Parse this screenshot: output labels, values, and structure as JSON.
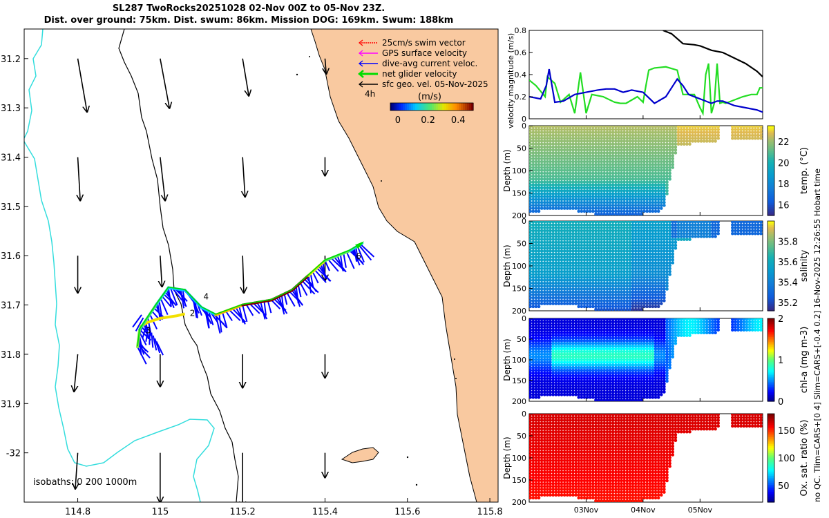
{
  "header": {
    "title_line1": "SL287 TwoRocks20251028 02-Nov 00Z to 05-Nov 23Z.",
    "title_line2": "Dist. over ground: 75km. Dist. swum: 86km. Mission DOG: 169km. Swum: 188km"
  },
  "timestamp": "no QC. Tlim=CARS+[0 4] Slim=CARS+[-0.4 0.2] 16-Nov-2025 12:26:55 Hobart time",
  "colors": {
    "land": "#f9c9a0",
    "coastline": "#000000",
    "isobath_200": "#000000",
    "isobath_1000": "#33dddd",
    "swim_vector": "#ff0000",
    "gps_surface": "#ff00ff",
    "dive_avg_current": "#0000ff",
    "net_glider": "#00dd00",
    "sfc_geo": "#000000"
  },
  "chart_data": [
    {
      "type": "map",
      "name": "glider-track-map",
      "xlim": [
        114.67,
        115.82
      ],
      "ylim": [
        -31.14,
        -32.1
      ],
      "x_ticks": [
        114.8,
        115,
        115.2,
        115.4,
        115.6,
        115.8
      ],
      "x_tick_labels": [
        "114.8",
        "115",
        "115.2",
        "115.4",
        "115.6",
        "115.8"
      ],
      "y_ticks": [
        -31.2,
        -31.3,
        -31.4,
        -31.5,
        -31.6,
        -31.7,
        -31.8,
        -31.9,
        -32
      ],
      "y_tick_labels": [
        "31.2",
        "31.3",
        "31.4",
        "31.5",
        "31.6",
        "31.7",
        "31.8",
        "31.9",
        "-32"
      ],
      "isobaths_label": "isobaths: 0   200  1000m",
      "isobaths": [
        0,
        200,
        1000
      ],
      "legend": {
        "entries": [
          {
            "label": "25cm/s swim vector",
            "color": "#ff0000"
          },
          {
            "label": "GPS surface velocity",
            "color": "#ff00ff"
          },
          {
            "label": "dive-avg current veloc.",
            "color": "#0000ff"
          },
          {
            "label": "net glider velocity",
            "color": "#00dd00"
          },
          {
            "label": "sfc geo. vel. 05-Nov-2025",
            "color": "#000000"
          }
        ],
        "interval_label": "4h",
        "colorbar_title": "(m/s)",
        "colorbar_range": [
          -0.05,
          0.5
        ],
        "colorbar_ticks": [
          0,
          0.2,
          0.4
        ],
        "colorbar_tick_labels": [
          "0",
          "0.2",
          "0.4"
        ],
        "placement": "top-right"
      },
      "geostrophic_vectors": {
        "lons": [
          114.8,
          115.0,
          115.2,
          115.4
        ],
        "lats": [
          -31.2,
          -31.4,
          -31.6,
          -31.8,
          -32.0
        ],
        "u": [
          [
            0.015,
            0.015,
            0.01,
            0.002
          ],
          [
            0.004,
            0.008,
            0.004,
            0.0
          ],
          [
            0.0,
            0.003,
            0.002,
            0.0
          ],
          [
            -0.006,
            0.0,
            0.0,
            0.0
          ],
          [
            -0.004,
            0.0,
            0.0,
            0.0
          ]
        ],
        "v": [
          [
            -0.086,
            -0.08,
            -0.06,
            -0.025
          ],
          [
            -0.07,
            -0.07,
            -0.064,
            -0.03
          ],
          [
            -0.06,
            -0.05,
            -0.06,
            -0.04
          ],
          [
            -0.06,
            -0.052,
            -0.054,
            -0.038
          ],
          [
            -0.058,
            -0.08,
            -0.088,
            -0.04
          ]
        ]
      },
      "track": {
        "lon": [
          114.945,
          114.95,
          114.99,
          115.02,
          115.06,
          115.1,
          115.135,
          115.2,
          115.27,
          115.32,
          115.36,
          115.4,
          115.46,
          115.49
        ],
        "lat": [
          -31.785,
          -31.75,
          -31.7,
          -31.665,
          -31.67,
          -31.705,
          -31.72,
          -31.7,
          -31.69,
          -31.67,
          -31.64,
          -31.61,
          -31.59,
          -31.575
        ],
        "speed": [
          0.25,
          0.2,
          0.15,
          0.12,
          0.1,
          0.12,
          0.35,
          0.5,
          0.6,
          0.5,
          0.3,
          0.22,
          0.15,
          0.1
        ],
        "day_labels": [
          {
            "text": "2",
            "lon": 115.072,
            "lat": -31.722
          },
          {
            "text": "3",
            "lon": 114.965,
            "lat": -31.757
          },
          {
            "text": "4",
            "lon": 115.105,
            "lat": -31.689
          },
          {
            "text": "6",
            "lon": 115.475,
            "lat": -31.607
          }
        ],
        "tail": {
          "lon": [
            115.06,
            115.04,
            115.0,
            114.97,
            114.95
          ],
          "lat": [
            -31.718,
            -31.722,
            -31.727,
            -31.735,
            -31.745
          ]
        }
      }
    },
    {
      "type": "line",
      "name": "velocity-magnitude",
      "ylabel": "velocity magnitude (m/s)",
      "ylim": [
        0,
        0.8
      ],
      "y_ticks": [
        0,
        0.2,
        0.4,
        0.6,
        0.8
      ],
      "y_tick_labels": [
        "0",
        "0.2",
        "0.4",
        "0.6",
        "0.8"
      ],
      "xlim": [
        0,
        4.1
      ],
      "series": [
        {
          "name": "black",
          "color": "#000000",
          "x": [
            2.35,
            2.5,
            2.7,
            2.9,
            3.0,
            3.2,
            3.4,
            3.6,
            3.8,
            4.0,
            4.1
          ],
          "y": [
            0.8,
            0.77,
            0.68,
            0.67,
            0.66,
            0.62,
            0.6,
            0.55,
            0.5,
            0.43,
            0.38
          ]
        },
        {
          "name": "green",
          "color": "#22dd22",
          "x": [
            0.0,
            0.12,
            0.28,
            0.32,
            0.45,
            0.55,
            0.7,
            0.8,
            0.9,
            1.0,
            1.1,
            1.3,
            1.5,
            1.6,
            1.7,
            1.9,
            2.0,
            2.05,
            2.1,
            2.2,
            2.4,
            2.6,
            2.7,
            2.9,
            3.0,
            3.05,
            3.1,
            3.15,
            3.2,
            3.25,
            3.3,
            3.35,
            3.4,
            3.45,
            3.55,
            3.75,
            3.9,
            4.0,
            4.05,
            4.1
          ],
          "y": [
            0.35,
            0.3,
            0.2,
            0.38,
            0.32,
            0.15,
            0.22,
            0.05,
            0.42,
            0.05,
            0.22,
            0.2,
            0.15,
            0.14,
            0.14,
            0.2,
            0.15,
            0.3,
            0.44,
            0.46,
            0.47,
            0.44,
            0.22,
            0.22,
            0.1,
            0.05,
            0.4,
            0.5,
            0.05,
            0.14,
            0.5,
            0.14,
            0.15,
            0.14,
            0.16,
            0.2,
            0.22,
            0.22,
            0.28,
            0.28
          ]
        },
        {
          "name": "blue",
          "color": "#0000cc",
          "x": [
            0.0,
            0.1,
            0.2,
            0.3,
            0.35,
            0.45,
            0.6,
            0.8,
            1.0,
            1.2,
            1.35,
            1.5,
            1.65,
            1.8,
            2.0,
            2.2,
            2.4,
            2.5,
            2.6,
            2.7,
            2.8,
            3.0,
            3.2,
            3.3,
            3.4,
            3.6,
            3.8,
            4.0,
            4.1
          ],
          "y": [
            0.2,
            0.19,
            0.18,
            0.3,
            0.45,
            0.15,
            0.16,
            0.22,
            0.24,
            0.26,
            0.27,
            0.27,
            0.24,
            0.26,
            0.24,
            0.14,
            0.2,
            0.28,
            0.36,
            0.3,
            0.22,
            0.18,
            0.14,
            0.16,
            0.16,
            0.12,
            0.1,
            0.08,
            0.06
          ]
        }
      ]
    },
    {
      "type": "heatmap",
      "name": "temperature-section",
      "ylabel": "Depth (m)",
      "ylim": [
        0,
        200
      ],
      "y_ticks": [
        0,
        50,
        100,
        150,
        200
      ],
      "y_tick_labels": [
        "0",
        "50",
        "100",
        "150",
        "200"
      ],
      "colorbar_label": "temp. (°C)",
      "colorbar_range": [
        15,
        23.5
      ],
      "colorbar_ticks": [
        16,
        18,
        20,
        22
      ],
      "colorbar_tick_labels": [
        "16",
        "18",
        "20",
        "22"
      ]
    },
    {
      "type": "heatmap",
      "name": "salinity-section",
      "ylabel": "Depth (m)",
      "ylim": [
        0,
        200
      ],
      "y_ticks": [
        0,
        50,
        100,
        150,
        200
      ],
      "y_tick_labels": [
        "0",
        "50",
        "100",
        "150",
        "200"
      ],
      "colorbar_label": "salinity",
      "colorbar_range": [
        35.12,
        36.0
      ],
      "colorbar_ticks": [
        35.2,
        35.4,
        35.6,
        35.8
      ],
      "colorbar_tick_labels": [
        "35.2",
        "35.4",
        "35.6",
        "35.8"
      ]
    },
    {
      "type": "heatmap",
      "name": "chlorophyll-section",
      "ylabel": "Depth (m)",
      "ylim": [
        0,
        200
      ],
      "y_ticks": [
        0,
        50,
        100,
        150,
        200
      ],
      "y_tick_labels": [
        "0",
        "50",
        "100",
        "150",
        "200"
      ],
      "colorbar_label": "chl-a (mg m-3)",
      "colorbar_range": [
        0,
        2
      ],
      "colorbar_ticks": [
        0,
        1,
        2
      ],
      "colorbar_tick_labels": [
        "0",
        "1",
        "2"
      ]
    },
    {
      "type": "heatmap",
      "name": "oxygen-section",
      "ylabel": "Depth (m)",
      "ylim": [
        0,
        200
      ],
      "y_ticks": [
        0,
        50,
        100,
        150,
        200
      ],
      "y_tick_labels": [
        "0",
        "50",
        "100",
        "150",
        "200"
      ],
      "colorbar_label": "Ox. sat. ratio (%)",
      "colorbar_range": [
        20,
        180
      ],
      "colorbar_ticks": [
        50,
        100,
        150
      ],
      "colorbar_tick_labels": [
        "50",
        "100",
        "150"
      ],
      "x_ticks": [
        1,
        2,
        3
      ],
      "x_tick_labels": [
        "03Nov",
        "04Nov",
        "05Nov"
      ],
      "xlim": [
        0,
        4.1
      ]
    }
  ]
}
